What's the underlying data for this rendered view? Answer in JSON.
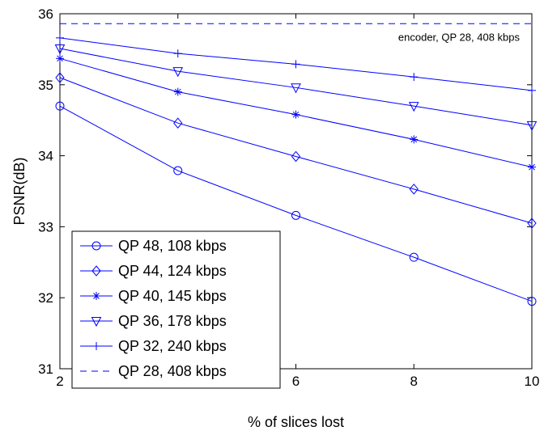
{
  "chart_data": {
    "type": "line",
    "title": "",
    "xlabel": "% of slices lost",
    "ylabel": "PSNR(dB)",
    "xlim": [
      2,
      10
    ],
    "ylim": [
      31,
      36
    ],
    "xticks": [
      "2",
      "4",
      "6",
      "8",
      "10"
    ],
    "yticks": [
      "31",
      "32",
      "33",
      "34",
      "35",
      "36"
    ],
    "x": [
      2,
      4,
      6,
      8,
      10
    ],
    "grid": false,
    "legend_position": "bottom-left",
    "line_color": "#0000ff",
    "series": [
      {
        "name": "QP 48, 108 kbps",
        "marker": "circle",
        "values": [
          34.7,
          33.79,
          33.16,
          32.57,
          31.95
        ]
      },
      {
        "name": "QP 44, 124 kbps",
        "marker": "diamond",
        "values": [
          35.1,
          34.46,
          33.99,
          33.53,
          33.05
        ]
      },
      {
        "name": "QP 40, 145 kbps",
        "marker": "star",
        "values": [
          35.37,
          34.9,
          34.58,
          34.23,
          33.84
        ]
      },
      {
        "name": "QP 36, 178 kbps",
        "marker": "triangle-down",
        "values": [
          35.51,
          35.19,
          34.96,
          34.7,
          34.43
        ]
      },
      {
        "name": "QP 32, 240 kbps",
        "marker": "plus",
        "values": [
          35.66,
          35.44,
          35.29,
          35.11,
          34.92
        ]
      },
      {
        "name": "QP 28, 408 kbps",
        "marker": "none",
        "dashed": true,
        "values": [
          35.86,
          35.86,
          35.86,
          35.86,
          35.86
        ]
      }
    ],
    "annotation": {
      "text": "encoder, QP 28, 408 kbps",
      "x": 10,
      "y": 35.62
    }
  }
}
